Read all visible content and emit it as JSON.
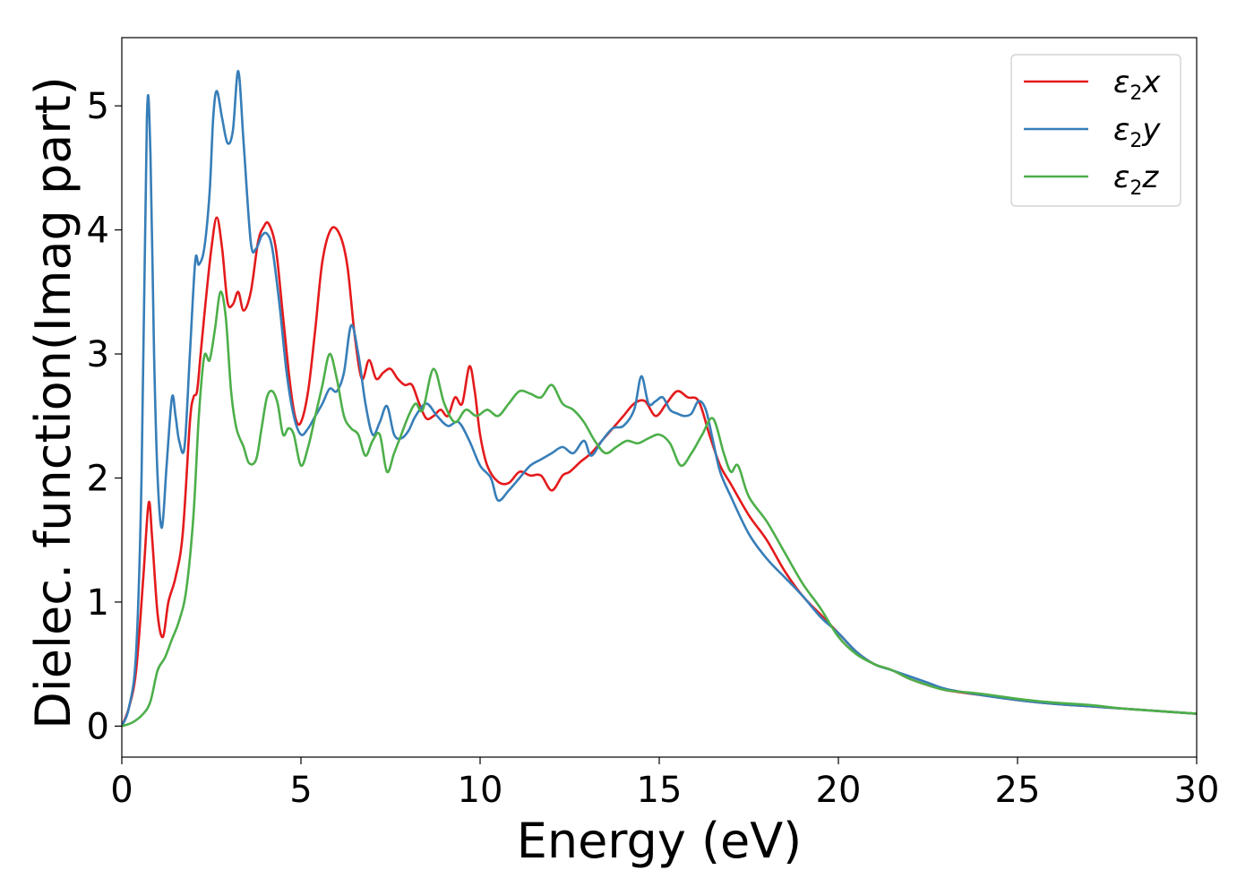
{
  "chart_data": {
    "type": "line",
    "xlabel": "Energy (eV)",
    "ylabel": "Dielec. function(Imag part)",
    "xlim": [
      0,
      30
    ],
    "ylim": [
      -0.25,
      5.55
    ],
    "xticks": [
      0,
      5,
      10,
      15,
      20,
      25,
      30
    ],
    "yticks": [
      0,
      1,
      2,
      3,
      4,
      5
    ],
    "xtick_labels": [
      "0",
      "5",
      "10",
      "15",
      "20",
      "25",
      "30"
    ],
    "ytick_labels": [
      "0",
      "1",
      "2",
      "3",
      "4",
      "5"
    ],
    "grid": false,
    "legend_position": "top-right",
    "series": [
      {
        "name": "ε2x",
        "label_base": "ε",
        "label_sub": "2",
        "label_var": "x",
        "color": "#e41a1c",
        "x": [
          0,
          0.2,
          0.4,
          0.6,
          0.75,
          0.85,
          1.0,
          1.15,
          1.3,
          1.5,
          1.7,
          1.9,
          2.0,
          2.1,
          2.2,
          2.35,
          2.5,
          2.65,
          2.8,
          2.95,
          3.1,
          3.25,
          3.4,
          3.6,
          3.8,
          3.95,
          4.1,
          4.3,
          4.5,
          4.7,
          4.85,
          5.0,
          5.2,
          5.4,
          5.6,
          5.85,
          6.1,
          6.3,
          6.5,
          6.7,
          6.9,
          7.1,
          7.3,
          7.5,
          7.7,
          7.9,
          8.1,
          8.3,
          8.5,
          8.7,
          8.9,
          9.1,
          9.3,
          9.5,
          9.7,
          9.85,
          10.0,
          10.2,
          10.5,
          10.8,
          11.1,
          11.4,
          11.7,
          12.0,
          12.3,
          12.5,
          12.8,
          13.1,
          13.4,
          13.7,
          14.0,
          14.3,
          14.6,
          14.9,
          15.2,
          15.5,
          15.8,
          16.1,
          16.4,
          16.7,
          17.0,
          17.5,
          18.0,
          18.5,
          19.0,
          19.5,
          20.0,
          20.5,
          21.0,
          21.5,
          22.0,
          22.5,
          23.0,
          24.0,
          25.0,
          26.0,
          27.0,
          28.0,
          29.0,
          30.0
        ],
        "y": [
          0.0,
          0.15,
          0.45,
          1.2,
          1.8,
          1.5,
          0.9,
          0.72,
          1.0,
          1.2,
          1.55,
          2.45,
          2.65,
          2.7,
          3.0,
          3.45,
          3.85,
          4.1,
          3.85,
          3.42,
          3.4,
          3.5,
          3.35,
          3.5,
          3.9,
          4.02,
          4.05,
          3.85,
          3.3,
          2.75,
          2.48,
          2.45,
          2.7,
          3.2,
          3.75,
          4.01,
          3.95,
          3.7,
          3.15,
          2.8,
          2.95,
          2.8,
          2.85,
          2.88,
          2.8,
          2.75,
          2.75,
          2.6,
          2.48,
          2.5,
          2.55,
          2.5,
          2.65,
          2.6,
          2.9,
          2.7,
          2.35,
          2.1,
          1.97,
          1.96,
          2.05,
          2.02,
          2.02,
          1.9,
          2.02,
          2.05,
          2.13,
          2.2,
          2.3,
          2.4,
          2.5,
          2.6,
          2.62,
          2.5,
          2.6,
          2.7,
          2.65,
          2.62,
          2.35,
          2.1,
          1.95,
          1.7,
          1.5,
          1.25,
          1.05,
          0.9,
          0.75,
          0.6,
          0.5,
          0.45,
          0.38,
          0.33,
          0.29,
          0.25,
          0.21,
          0.18,
          0.16,
          0.14,
          0.12,
          0.1
        ]
      },
      {
        "name": "ε2y",
        "label_base": "ε",
        "label_sub": "2",
        "label_var": "y",
        "color": "#377eb8",
        "x": [
          0,
          0.2,
          0.4,
          0.55,
          0.7,
          0.8,
          0.9,
          1.0,
          1.12,
          1.25,
          1.4,
          1.5,
          1.6,
          1.75,
          1.9,
          2.05,
          2.15,
          2.3,
          2.45,
          2.55,
          2.65,
          2.8,
          2.95,
          3.1,
          3.25,
          3.4,
          3.6,
          3.75,
          3.9,
          4.05,
          4.2,
          4.4,
          4.6,
          4.8,
          5.0,
          5.2,
          5.4,
          5.6,
          5.8,
          6.0,
          6.2,
          6.4,
          6.6,
          6.8,
          7.0,
          7.2,
          7.4,
          7.6,
          7.8,
          8.0,
          8.2,
          8.5,
          8.8,
          9.1,
          9.4,
          9.7,
          10.0,
          10.3,
          10.5,
          10.8,
          11.1,
          11.4,
          11.7,
          12.0,
          12.3,
          12.6,
          12.9,
          13.1,
          13.4,
          13.7,
          14.0,
          14.3,
          14.5,
          14.7,
          14.9,
          15.1,
          15.3,
          15.5,
          15.7,
          15.9,
          16.1,
          16.3,
          16.5,
          16.7,
          17.0,
          17.5,
          18.0,
          18.5,
          19.0,
          19.5,
          20.0,
          20.5,
          21.0,
          21.5,
          22.0,
          22.5,
          23.0,
          24.0,
          25.0,
          26.0,
          27.0,
          28.0,
          29.0,
          30.0
        ],
        "y": [
          0.0,
          0.15,
          0.6,
          2.0,
          4.9,
          4.6,
          3.0,
          2.0,
          1.6,
          2.1,
          2.65,
          2.5,
          2.3,
          2.25,
          3.0,
          3.75,
          3.72,
          3.85,
          4.3,
          4.9,
          5.12,
          4.9,
          4.7,
          4.8,
          5.28,
          4.7,
          3.9,
          3.85,
          3.95,
          3.97,
          3.85,
          3.4,
          2.85,
          2.5,
          2.35,
          2.4,
          2.5,
          2.6,
          2.72,
          2.7,
          2.85,
          3.23,
          3.0,
          2.6,
          2.35,
          2.45,
          2.58,
          2.35,
          2.32,
          2.38,
          2.5,
          2.6,
          2.5,
          2.42,
          2.45,
          2.3,
          2.1,
          2.0,
          1.82,
          1.9,
          2.0,
          2.1,
          2.15,
          2.2,
          2.25,
          2.2,
          2.3,
          2.18,
          2.3,
          2.4,
          2.42,
          2.55,
          2.82,
          2.6,
          2.62,
          2.65,
          2.55,
          2.52,
          2.5,
          2.52,
          2.62,
          2.55,
          2.3,
          2.05,
          1.85,
          1.55,
          1.35,
          1.2,
          1.05,
          0.88,
          0.75,
          0.6,
          0.5,
          0.45,
          0.4,
          0.35,
          0.3,
          0.25,
          0.21,
          0.18,
          0.16,
          0.14,
          0.12,
          0.1
        ]
      },
      {
        "name": "ε2z",
        "label_base": "ε",
        "label_sub": "2",
        "label_var": "z",
        "color": "#4daf4a",
        "x": [
          0,
          0.3,
          0.6,
          0.8,
          1.0,
          1.2,
          1.4,
          1.6,
          1.8,
          2.0,
          2.15,
          2.3,
          2.45,
          2.6,
          2.75,
          2.9,
          3.05,
          3.2,
          3.4,
          3.55,
          3.75,
          3.9,
          4.05,
          4.2,
          4.35,
          4.5,
          4.65,
          4.8,
          5.0,
          5.2,
          5.4,
          5.6,
          5.8,
          6.0,
          6.2,
          6.4,
          6.6,
          6.8,
          7.0,
          7.2,
          7.4,
          7.6,
          7.8,
          8.0,
          8.2,
          8.4,
          8.7,
          9.0,
          9.3,
          9.6,
          9.9,
          10.2,
          10.5,
          10.8,
          11.1,
          11.4,
          11.7,
          12.0,
          12.3,
          12.6,
          12.9,
          13.2,
          13.5,
          13.8,
          14.1,
          14.4,
          14.7,
          15.0,
          15.3,
          15.6,
          15.9,
          16.2,
          16.5,
          16.8,
          17.0,
          17.2,
          17.5,
          18.0,
          18.5,
          19.0,
          19.5,
          20.0,
          20.5,
          21.0,
          21.5,
          22.0,
          22.5,
          23.0,
          24.0,
          25.0,
          26.0,
          27.0,
          28.0,
          29.0,
          30.0
        ],
        "y": [
          0.0,
          0.03,
          0.1,
          0.2,
          0.45,
          0.55,
          0.7,
          0.85,
          1.1,
          1.7,
          2.5,
          2.98,
          2.95,
          3.2,
          3.5,
          3.3,
          2.7,
          2.4,
          2.25,
          2.12,
          2.15,
          2.4,
          2.65,
          2.7,
          2.6,
          2.35,
          2.4,
          2.35,
          2.1,
          2.25,
          2.5,
          2.75,
          3.0,
          2.8,
          2.5,
          2.4,
          2.35,
          2.18,
          2.3,
          2.35,
          2.05,
          2.2,
          2.35,
          2.5,
          2.6,
          2.55,
          2.88,
          2.6,
          2.45,
          2.55,
          2.5,
          2.55,
          2.5,
          2.6,
          2.7,
          2.68,
          2.65,
          2.75,
          2.6,
          2.55,
          2.45,
          2.3,
          2.2,
          2.25,
          2.3,
          2.28,
          2.32,
          2.35,
          2.28,
          2.1,
          2.2,
          2.35,
          2.48,
          2.2,
          2.05,
          2.1,
          1.85,
          1.65,
          1.4,
          1.15,
          0.95,
          0.72,
          0.58,
          0.5,
          0.45,
          0.38,
          0.33,
          0.29,
          0.26,
          0.22,
          0.19,
          0.17,
          0.14,
          0.12,
          0.1
        ]
      }
    ]
  }
}
